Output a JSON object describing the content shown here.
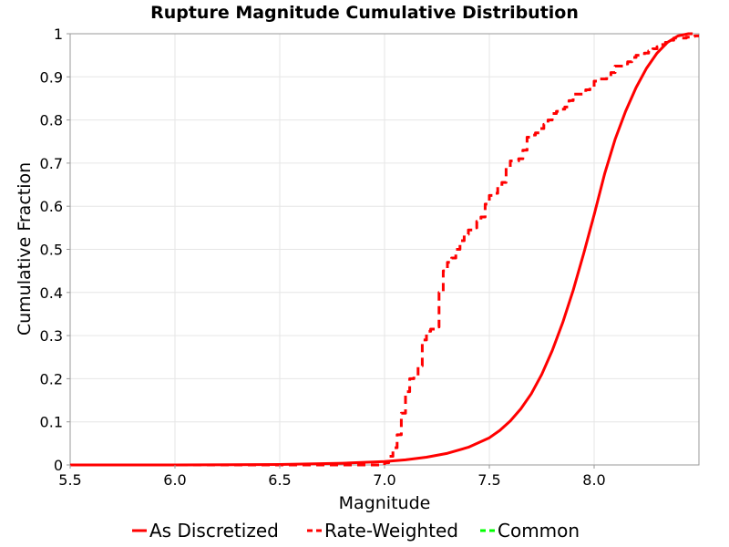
{
  "chart_data": {
    "type": "line",
    "title": "Rupture Magnitude Cumulative Distribution",
    "xlabel": "Magnitude",
    "ylabel": "Cumulative Fraction",
    "xlim": [
      5.5,
      8.5
    ],
    "ylim": [
      0,
      1
    ],
    "xticks": [
      "5.5",
      "6.0",
      "6.5",
      "7.0",
      "7.5",
      "8.0"
    ],
    "yticks": [
      "0",
      "0.1",
      "0.2",
      "0.3",
      "0.4",
      "0.5",
      "0.6",
      "0.7",
      "0.8",
      "0.9",
      "1"
    ],
    "grid": true,
    "legend_position": "bottom",
    "series": [
      {
        "name": "As Discretized",
        "color": "#ff0000",
        "dash": "solid",
        "x": [
          5.5,
          6.0,
          6.5,
          6.8,
          7.0,
          7.1,
          7.2,
          7.3,
          7.4,
          7.5,
          7.55,
          7.6,
          7.65,
          7.7,
          7.75,
          7.8,
          7.85,
          7.9,
          7.95,
          8.0,
          8.05,
          8.1,
          8.15,
          8.2,
          8.25,
          8.3,
          8.35,
          8.4,
          8.45,
          8.47
        ],
        "y": [
          0.0,
          0.0,
          0.001,
          0.004,
          0.008,
          0.012,
          0.018,
          0.027,
          0.041,
          0.063,
          0.08,
          0.102,
          0.13,
          0.165,
          0.21,
          0.265,
          0.33,
          0.405,
          0.49,
          0.58,
          0.675,
          0.755,
          0.82,
          0.875,
          0.92,
          0.955,
          0.98,
          0.995,
          1.0,
          1.0
        ]
      },
      {
        "name": "Rate-Weighted",
        "color": "#ff0000",
        "dash": "dashed",
        "x": [
          5.5,
          6.5,
          6.95,
          7.0,
          7.02,
          7.04,
          7.06,
          7.08,
          7.1,
          7.12,
          7.14,
          7.16,
          7.18,
          7.2,
          7.22,
          7.24,
          7.26,
          7.28,
          7.3,
          7.32,
          7.34,
          7.36,
          7.38,
          7.4,
          7.42,
          7.44,
          7.46,
          7.48,
          7.5,
          7.52,
          7.54,
          7.56,
          7.58,
          7.6,
          7.62,
          7.64,
          7.66,
          7.68,
          7.7,
          7.72,
          7.74,
          7.76,
          7.78,
          7.8,
          7.82,
          7.84,
          7.86,
          7.88,
          7.9,
          7.92,
          7.94,
          7.96,
          7.98,
          8.0,
          8.02,
          8.04,
          8.06,
          8.08,
          8.1,
          8.12,
          8.14,
          8.16,
          8.18,
          8.2,
          8.22,
          8.24,
          8.26,
          8.28,
          8.3,
          8.32,
          8.34,
          8.36,
          8.38,
          8.4,
          8.42,
          8.44,
          8.46,
          8.48,
          8.5
        ],
        "y": [
          0.0,
          0.0,
          0.0,
          0.005,
          0.02,
          0.04,
          0.07,
          0.12,
          0.17,
          0.2,
          0.205,
          0.23,
          0.29,
          0.31,
          0.315,
          0.32,
          0.4,
          0.45,
          0.47,
          0.48,
          0.5,
          0.52,
          0.535,
          0.545,
          0.55,
          0.565,
          0.575,
          0.605,
          0.625,
          0.63,
          0.645,
          0.655,
          0.69,
          0.705,
          0.705,
          0.71,
          0.73,
          0.76,
          0.765,
          0.77,
          0.78,
          0.79,
          0.8,
          0.815,
          0.82,
          0.825,
          0.83,
          0.845,
          0.86,
          0.86,
          0.86,
          0.87,
          0.875,
          0.89,
          0.895,
          0.895,
          0.9,
          0.91,
          0.925,
          0.925,
          0.93,
          0.935,
          0.945,
          0.95,
          0.95,
          0.955,
          0.96,
          0.965,
          0.97,
          0.975,
          0.98,
          0.985,
          0.99,
          0.99,
          0.99,
          0.992,
          0.994,
          0.995,
          0.995
        ]
      },
      {
        "name": "Common",
        "color": "#00ff00",
        "dash": "dashed",
        "x": [],
        "y": []
      }
    ]
  }
}
